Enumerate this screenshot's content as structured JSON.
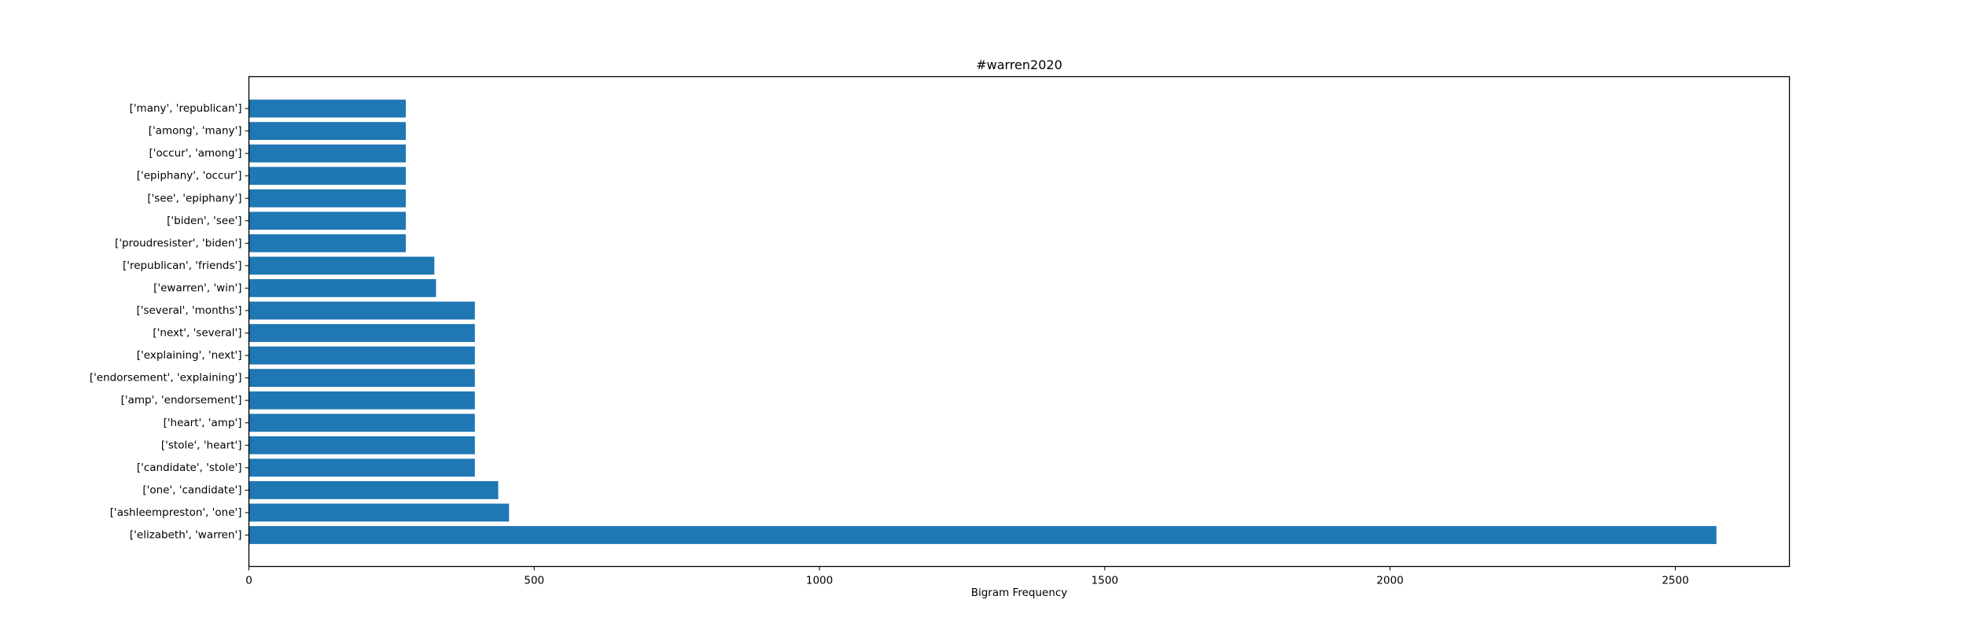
{
  "chart_data": {
    "type": "bar",
    "orientation": "horizontal",
    "title": "#warren2020",
    "xlabel": "Bigram Frequency",
    "ylabel": "",
    "xlim": [
      0,
      2700
    ],
    "xticks": [
      0,
      500,
      1000,
      1500,
      2000,
      2500
    ],
    "grid": false,
    "bar_color": "#1f77b4",
    "categories": [
      "['elizabeth', 'warren']",
      "['ashleempreston', 'one']",
      "['one', 'candidate']",
      "['candidate', 'stole']",
      "['stole', 'heart']",
      "['heart', 'amp']",
      "['amp', 'endorsement']",
      "['endorsement', 'explaining']",
      "['explaining', 'next']",
      "['next', 'several']",
      "['several', 'months']",
      "['ewarren', 'win']",
      "['republican', 'friends']",
      "['proudresister', 'biden']",
      "['biden', 'see']",
      "['see', 'epiphany']",
      "['epiphany', 'occur']",
      "['occur', 'among']",
      "['among', 'many']",
      "['many', 'republican']"
    ],
    "values": [
      2572,
      456,
      437,
      396,
      396,
      396,
      396,
      396,
      396,
      396,
      396,
      328,
      325,
      275,
      275,
      275,
      275,
      275,
      275,
      275
    ]
  }
}
